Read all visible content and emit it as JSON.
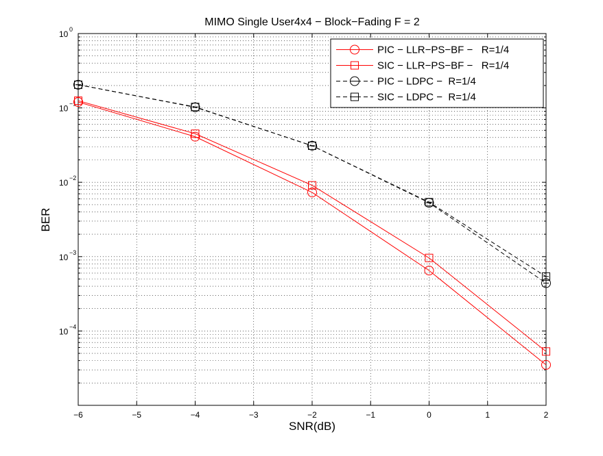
{
  "chart_data": {
    "type": "line",
    "title": "MIMO Single User4x4 − Block−Fading F = 2",
    "xlabel": "SNR(dB)",
    "ylabel": "BER",
    "xlim": [
      -6,
      2
    ],
    "ylim": [
      1e-05,
      1
    ],
    "yscale": "log",
    "grid": true,
    "legend_position": "top-right",
    "x_ticks": [
      -6,
      -5,
      -4,
      -3,
      -2,
      -1,
      0,
      1,
      2
    ],
    "x_tick_labels": [
      "−6",
      "−5",
      "−4",
      "−3",
      "−2",
      "−1",
      "0",
      "1",
      "2"
    ],
    "y_ticks": [
      0.0001,
      0.001,
      0.01,
      0.1,
      1
    ],
    "y_tick_labels": [
      {
        "base": "10",
        "exp": "−4"
      },
      {
        "base": "10",
        "exp": "−3"
      },
      {
        "base": "10",
        "exp": "−2"
      },
      {
        "base": "10",
        "exp": "−1"
      },
      {
        "base": "10",
        "exp": "0"
      }
    ],
    "series": [
      {
        "name": "PIC − LLR−PS−BF −   R=1/4",
        "color": "#ff0000",
        "dash": "solid",
        "marker": "circle",
        "x": [
          -6,
          -4,
          -2,
          0,
          2
        ],
        "values": [
          0.12,
          0.041,
          0.0073,
          0.00065,
          3.5e-05
        ]
      },
      {
        "name": "SIC − LLR−PS−BF −   R=1/4",
        "color": "#ff0000",
        "dash": "solid",
        "marker": "square",
        "x": [
          -6,
          -4,
          -2,
          0,
          2
        ],
        "values": [
          0.125,
          0.045,
          0.0091,
          0.00096,
          5.3e-05
        ]
      },
      {
        "name": "PIC − LDPC −  R=1/4",
        "color": "#000000",
        "dash": "dashed",
        "marker": "circle",
        "x": [
          -6,
          -4,
          -2,
          0,
          2
        ],
        "values": [
          0.205,
          0.102,
          0.031,
          0.0053,
          0.00044
        ]
      },
      {
        "name": "SIC − LDPC −  R=1/4",
        "color": "#000000",
        "dash": "dashed",
        "marker": "square",
        "x": [
          -6,
          -4,
          -2,
          0,
          2
        ],
        "values": [
          0.205,
          0.103,
          0.031,
          0.0054,
          0.00054
        ]
      }
    ]
  }
}
